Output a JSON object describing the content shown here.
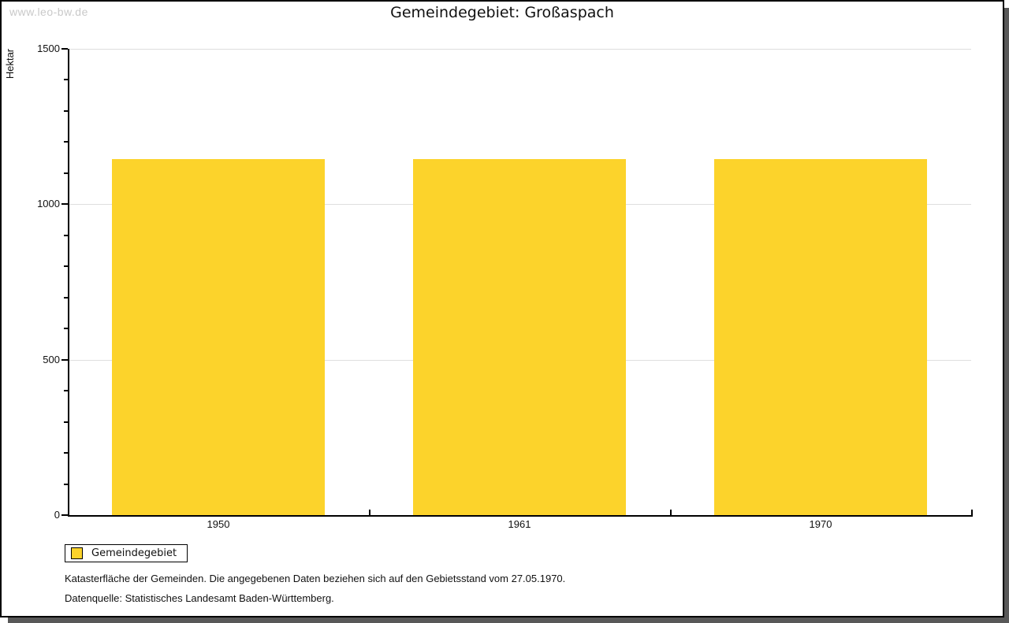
{
  "watermark": "www.leo-bw.de",
  "chart_data": {
    "type": "bar",
    "title": "Gemeindegebiet: Großaspach",
    "xlabel": "",
    "ylabel": "Hektar",
    "categories": [
      "1950",
      "1961",
      "1970"
    ],
    "series": [
      {
        "name": "Gemeindegebiet",
        "values": [
          1145,
          1145,
          1145
        ]
      }
    ],
    "ylim": [
      0,
      1500
    ],
    "yticks": [
      0,
      500,
      1000,
      1500
    ],
    "y_minor_step": 100,
    "grid": "horizontal-major",
    "legend_position": "bottom-left",
    "bar_color": "#FCD32B"
  },
  "legend": {
    "items": [
      {
        "label": "Gemeindegebiet",
        "color": "#FCD32B"
      }
    ]
  },
  "footnotes": [
    "Katasterfläche der Gemeinden. Die angegebenen Daten beziehen sich auf den Gebietsstand vom 27.05.1970.",
    "Datenquelle: Statistisches Landesamt Baden-Württemberg."
  ],
  "colors": {
    "background": "#FFFFFF",
    "bar": "#FCD32B",
    "gridline": "#DEDEDE",
    "axis": "#000000",
    "text": "#111111",
    "watermark": "#C9C9C9",
    "page_border": "#000000",
    "shadow": "#585858"
  }
}
